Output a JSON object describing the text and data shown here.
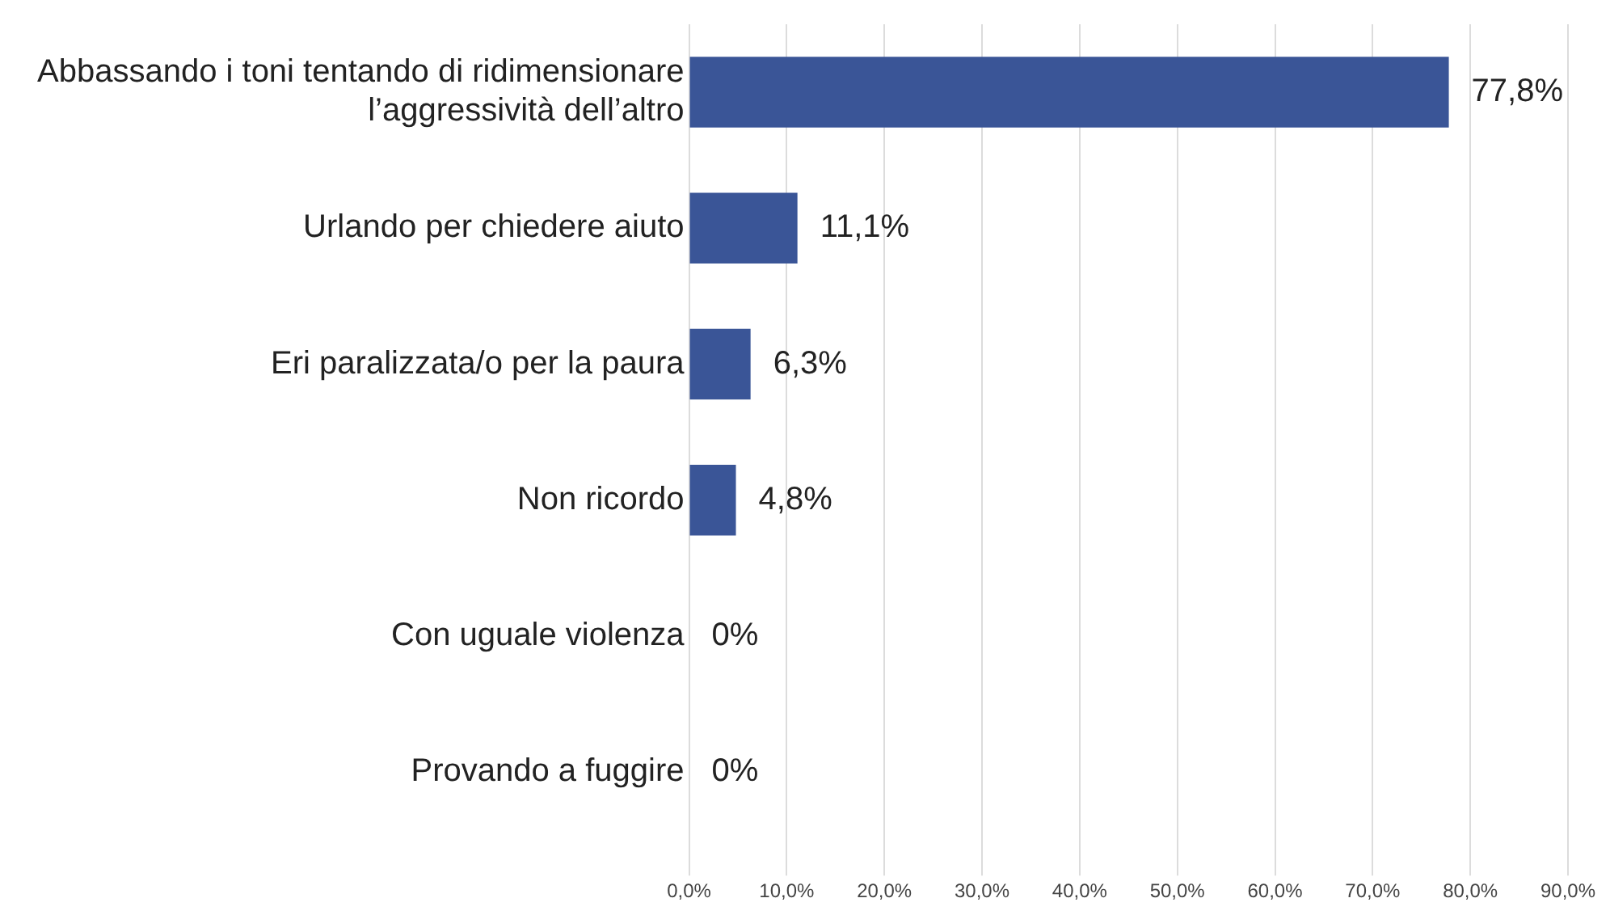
{
  "chart_data": {
    "type": "bar",
    "orientation": "horizontal",
    "categories": [
      "Abbassando i toni tentando di ridimensionare l’aggressività dell’altro",
      "Urlando per chiedere aiuto",
      "Eri paralizzata/o per la paura",
      "Non ricordo",
      "Con uguale violenza",
      "Provando a fuggire"
    ],
    "values": [
      77.8,
      11.1,
      6.3,
      4.8,
      0,
      0
    ],
    "value_labels": [
      "77,8%",
      "11,1%",
      "6,3%",
      "4,8%",
      "0%",
      "0%"
    ],
    "color": "#3a5597",
    "xlim": [
      0,
      90
    ],
    "xticks": [
      {
        "value": 0,
        "label": "0,0%"
      },
      {
        "value": 10,
        "label": "10,0%"
      },
      {
        "value": 20,
        "label": "20,0%"
      },
      {
        "value": 30,
        "label": "30,0%"
      },
      {
        "value": 40,
        "label": "40,0%"
      },
      {
        "value": 50,
        "label": "50,0%"
      },
      {
        "value": 60,
        "label": "60,0%"
      },
      {
        "value": 70,
        "label": "70,0%"
      },
      {
        "value": 80,
        "label": "80,0%"
      },
      {
        "value": 90,
        "label": "90,0%"
      }
    ],
    "grid": "x",
    "legend": false
  }
}
